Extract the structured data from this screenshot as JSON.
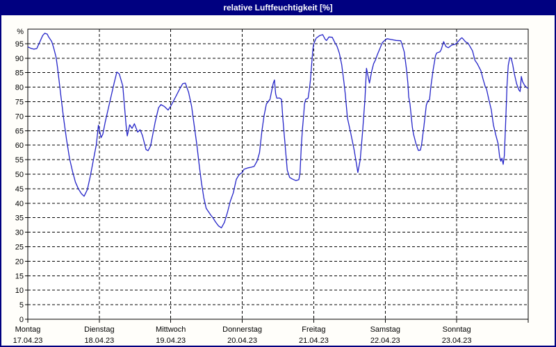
{
  "window": {
    "title": "relative Luftfeuchtigkeit [%]"
  },
  "colors": {
    "titlebar_bg": "#000080",
    "titlebar_text": "#ffffff",
    "frame": "#000080",
    "plot_background": "#ffffff",
    "plot_border": "#000000",
    "grid": "#000000",
    "line": "#2323c8"
  },
  "chart_data": {
    "type": "line",
    "title": "relative Luftfeuchtigkeit [%]",
    "y_unit": "%",
    "y_min": 0,
    "y_max": 100,
    "y_ticks": [
      0,
      5,
      10,
      15,
      20,
      25,
      30,
      35,
      40,
      45,
      50,
      55,
      60,
      65,
      70,
      75,
      80,
      85,
      90,
      95
    ],
    "grid_style": "dashed",
    "x_total_hours": 168,
    "x_labels": [
      {
        "weekday": "Montag",
        "date": "17.04.23"
      },
      {
        "weekday": "Dienstag",
        "date": "18.04.23"
      },
      {
        "weekday": "Mittwoch",
        "date": "19.04.23"
      },
      {
        "weekday": "Donnerstag",
        "date": "20.04.23"
      },
      {
        "weekday": "Freitag",
        "date": "21.04.23"
      },
      {
        "weekday": "Samstag",
        "date": "22.04.23"
      },
      {
        "weekday": "Sonntag",
        "date": "23.04.23"
      }
    ],
    "series": [
      {
        "name": "relative Luftfeuchtigkeit",
        "points": [
          [
            0,
            93.9
          ],
          [
            1,
            93.4
          ],
          [
            2,
            93.1
          ],
          [
            3,
            93.3
          ],
          [
            4,
            95.5
          ],
          [
            5,
            97.8
          ],
          [
            5.7,
            98.6
          ],
          [
            6.5,
            98.3
          ],
          [
            7,
            97.3
          ],
          [
            8,
            95.8
          ],
          [
            8.7,
            93.5
          ],
          [
            9.5,
            90.3
          ],
          [
            10,
            86.5
          ],
          [
            11,
            78
          ],
          [
            12,
            69.5
          ],
          [
            13,
            62
          ],
          [
            14,
            55.5
          ],
          [
            15,
            51
          ],
          [
            16,
            47.2
          ],
          [
            17,
            44.9
          ],
          [
            18,
            43.3
          ],
          [
            18.9,
            42.4
          ],
          [
            20,
            44.7
          ],
          [
            21,
            49.4
          ],
          [
            22,
            54.8
          ],
          [
            23,
            60.2
          ],
          [
            23.7,
            66.9
          ],
          [
            24.6,
            62.6
          ],
          [
            25.2,
            63.8
          ],
          [
            26,
            68
          ],
          [
            27,
            72.5
          ],
          [
            28,
            77
          ],
          [
            29,
            81.5
          ],
          [
            29.9,
            85.2
          ],
          [
            30.7,
            84.6
          ],
          [
            31.9,
            80.4
          ],
          [
            33,
            66.9
          ],
          [
            33.4,
            63.2
          ],
          [
            34.2,
            67
          ],
          [
            35,
            65.8
          ],
          [
            35.8,
            67.4
          ],
          [
            36.9,
            64.5
          ],
          [
            37.7,
            65.3
          ],
          [
            38.5,
            63.3
          ],
          [
            39.7,
            58.5
          ],
          [
            40.4,
            58.1
          ],
          [
            41.2,
            59.7
          ],
          [
            42.8,
            68.1
          ],
          [
            43.9,
            72.9
          ],
          [
            44.7,
            74
          ],
          [
            45.9,
            73.3
          ],
          [
            47.1,
            72.1
          ],
          [
            48,
            73.5
          ],
          [
            49,
            75.4
          ],
          [
            50,
            77.4
          ],
          [
            51,
            79.4
          ],
          [
            52,
            81.2
          ],
          [
            52.9,
            81.4
          ],
          [
            54,
            78.2
          ],
          [
            55,
            73.4
          ],
          [
            56,
            65.8
          ],
          [
            56.8,
            59.8
          ],
          [
            57.6,
            52.6
          ],
          [
            58.3,
            47
          ],
          [
            59.1,
            41.8
          ],
          [
            59.9,
            38.2
          ],
          [
            60.7,
            37
          ],
          [
            61.5,
            35.8
          ],
          [
            62.2,
            34.9
          ],
          [
            63,
            33.6
          ],
          [
            64,
            32.2
          ],
          [
            65,
            31.5
          ],
          [
            66,
            33.4
          ],
          [
            67,
            36.7
          ],
          [
            68,
            40.7
          ],
          [
            69,
            43.6
          ],
          [
            70,
            48.2
          ],
          [
            70.8,
            49.6
          ],
          [
            71.4,
            50.2
          ],
          [
            72,
            50.6
          ],
          [
            72.6,
            51.7
          ],
          [
            74,
            52.2
          ],
          [
            75,
            52.4
          ],
          [
            76,
            52.7
          ],
          [
            77,
            54.6
          ],
          [
            77.8,
            57.4
          ],
          [
            78.6,
            65
          ],
          [
            79.3,
            70.1
          ],
          [
            80.1,
            74.2
          ],
          [
            81.3,
            75.8
          ],
          [
            82.4,
            81.3
          ],
          [
            82.8,
            82.5
          ],
          [
            83.2,
            77.7
          ],
          [
            83.6,
            76.2
          ],
          [
            84.5,
            76.3
          ],
          [
            85.2,
            75.8
          ],
          [
            85.6,
            69.4
          ],
          [
            86.3,
            61
          ],
          [
            87.1,
            51.4
          ],
          [
            87.9,
            48.9
          ],
          [
            88.7,
            48.4
          ],
          [
            90,
            47.8
          ],
          [
            91,
            48.1
          ],
          [
            91.4,
            50.4
          ],
          [
            91.8,
            59
          ],
          [
            92.2,
            65.4
          ],
          [
            92.6,
            70.2
          ],
          [
            92.9,
            74.2
          ],
          [
            93.3,
            75.8
          ],
          [
            94.1,
            76.2
          ],
          [
            94.5,
            79
          ],
          [
            94.9,
            82.5
          ],
          [
            95.3,
            87.7
          ],
          [
            95.7,
            92.9
          ],
          [
            96,
            94.9
          ],
          [
            96.8,
            96.9
          ],
          [
            98,
            97.8
          ],
          [
            99,
            98.1
          ],
          [
            99.9,
            96.4
          ],
          [
            100.3,
            96.1
          ],
          [
            101.1,
            97.3
          ],
          [
            102.2,
            97.2
          ],
          [
            103.1,
            95.3
          ],
          [
            103.8,
            94.1
          ],
          [
            104.6,
            91.7
          ],
          [
            105.4,
            87.7
          ],
          [
            106.2,
            81.3
          ],
          [
            106.6,
            77.4
          ],
          [
            106.9,
            74.2
          ],
          [
            107.3,
            69.4
          ],
          [
            108.4,
            64.2
          ],
          [
            109.6,
            58.2
          ],
          [
            110.8,
            50.6
          ],
          [
            111.6,
            55
          ],
          [
            112.4,
            64.6
          ],
          [
            113.2,
            75.8
          ],
          [
            113.7,
            86.5
          ],
          [
            114.7,
            81.4
          ],
          [
            115.5,
            85.7
          ],
          [
            116.1,
            88.1
          ],
          [
            116.7,
            89.3
          ],
          [
            117.4,
            91.3
          ],
          [
            118.2,
            93.3
          ],
          [
            119,
            95.3
          ],
          [
            119.8,
            96.1
          ],
          [
            120.6,
            96.7
          ],
          [
            122.1,
            96.4
          ],
          [
            123.7,
            96.1
          ],
          [
            125.2,
            96
          ],
          [
            125.6,
            94.9
          ],
          [
            126.4,
            92.1
          ],
          [
            127.2,
            85.7
          ],
          [
            127.6,
            81.3
          ],
          [
            127.9,
            76.6
          ],
          [
            128.3,
            74.2
          ],
          [
            128.7,
            70.2
          ],
          [
            129.1,
            66.2
          ],
          [
            129.5,
            63.8
          ],
          [
            129.9,
            62.2
          ],
          [
            130.3,
            60.6
          ],
          [
            131.1,
            58.2
          ],
          [
            131.8,
            58.3
          ],
          [
            132.2,
            60.2
          ],
          [
            133,
            66.6
          ],
          [
            133.8,
            73.8
          ],
          [
            134.2,
            75
          ],
          [
            134.9,
            75.8
          ],
          [
            135.3,
            80.1
          ],
          [
            136.1,
            86.1
          ],
          [
            136.9,
            90.9
          ],
          [
            137.3,
            91.8
          ],
          [
            138.4,
            92.2
          ],
          [
            138.8,
            93
          ],
          [
            139.6,
            95.7
          ],
          [
            140.4,
            94
          ],
          [
            141.2,
            93.6
          ],
          [
            142.3,
            94.5
          ],
          [
            143.5,
            94.8
          ],
          [
            144,
            95.2
          ],
          [
            145.5,
            96.9
          ],
          [
            145.8,
            97
          ],
          [
            147,
            95.6
          ],
          [
            147.8,
            95.2
          ],
          [
            149.3,
            92.5
          ],
          [
            150.1,
            89.3
          ],
          [
            150.9,
            88.1
          ],
          [
            151.3,
            87.3
          ],
          [
            152.1,
            85.7
          ],
          [
            152.8,
            82.9
          ],
          [
            153.6,
            80.1
          ],
          [
            154,
            79.4
          ],
          [
            154.8,
            75.7
          ],
          [
            155.6,
            72.2
          ],
          [
            156.3,
            67
          ],
          [
            157.1,
            63.6
          ],
          [
            157.9,
            60.5
          ],
          [
            158.4,
            56
          ],
          [
            158.8,
            54.5
          ],
          [
            159.2,
            55.5
          ],
          [
            159.6,
            53.4
          ],
          [
            160,
            56.5
          ],
          [
            160.5,
            70
          ],
          [
            160.9,
            81
          ],
          [
            161.3,
            87.5
          ],
          [
            161.8,
            90.2
          ],
          [
            162.3,
            89.9
          ],
          [
            162.8,
            87.8
          ],
          [
            163.3,
            84.8
          ],
          [
            164.1,
            81.2
          ],
          [
            164.9,
            79
          ],
          [
            165.3,
            78.5
          ],
          [
            165.7,
            83.7
          ],
          [
            166.1,
            81.9
          ],
          [
            166.8,
            80.6
          ],
          [
            167.6,
            79.8
          ],
          [
            168,
            79.6
          ]
        ]
      }
    ]
  }
}
